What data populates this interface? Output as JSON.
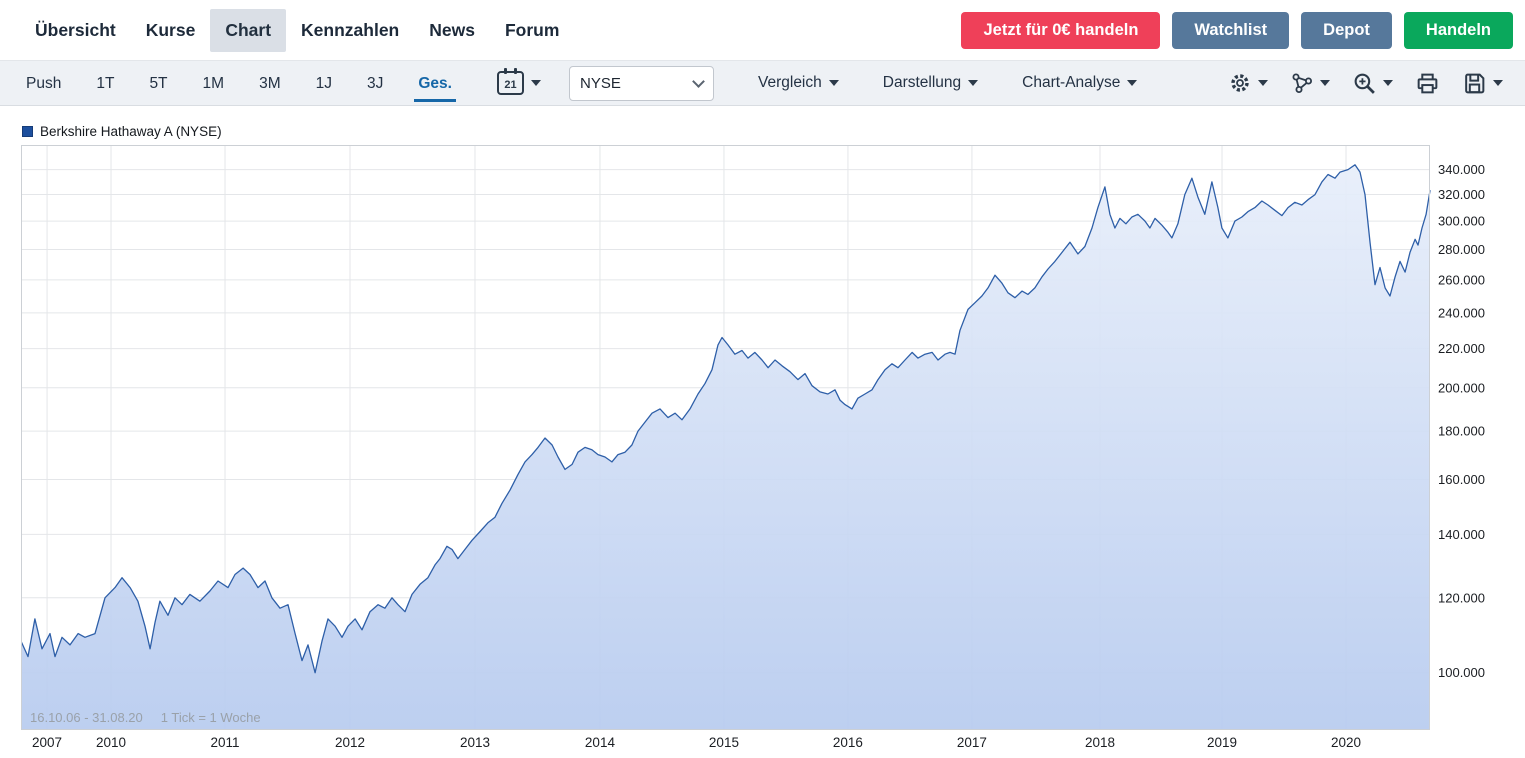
{
  "nav": {
    "tabs": [
      "Übersicht",
      "Kurse",
      "Chart",
      "Kennzahlen",
      "News",
      "Forum"
    ],
    "buttons": {
      "promo": "Jetzt für 0€ handeln",
      "watchlist": "Watchlist",
      "depot": "Depot",
      "trade": "Handeln"
    }
  },
  "toolbar": {
    "ranges": [
      "Push",
      "1T",
      "5T",
      "1M",
      "3M",
      "1J",
      "3J",
      "Ges."
    ],
    "active_range": "Ges.",
    "calendar_day": "21",
    "exchange_value": "NYSE",
    "menus": [
      "Vergleich",
      "Darstellung",
      "Chart-Analyse"
    ],
    "icons": [
      "calendar-icon",
      "settings-icon",
      "indicators-icon",
      "zoom-in-icon",
      "print-icon",
      "save-icon"
    ]
  },
  "colors": {
    "promo_button": "#ef4059",
    "watchlist_depot_button": "#56789b",
    "trade_button": "#0aa85c",
    "active_range": "#1667a8",
    "series_line": "#2e5fa8",
    "gridline": "#e4e6e9"
  },
  "chart_data": {
    "type": "area",
    "title": "Berkshire Hathaway A (NYSE)",
    "legend": {
      "label": "Berkshire Hathaway A (NYSE)",
      "color": "#1d4f9e"
    },
    "footer": {
      "period": "16.10.06 - 31.08.20",
      "tick_info": "1 Tick = 1 Woche"
    },
    "grid": true,
    "legend_position": "top-left",
    "x_axis": {
      "ticks": [
        {
          "label": "2007",
          "f": 0.0185
        },
        {
          "label": "2010",
          "f": 0.0639
        },
        {
          "label": "2011",
          "f": 0.1448
        },
        {
          "label": "2012",
          "f": 0.2335
        },
        {
          "label": "2013",
          "f": 0.3222
        },
        {
          "label": "2014",
          "f": 0.4109
        },
        {
          "label": "2015",
          "f": 0.4989
        },
        {
          "label": "2016",
          "f": 0.5869
        },
        {
          "label": "2017",
          "f": 0.6749
        },
        {
          "label": "2018",
          "f": 0.7658
        },
        {
          "label": "2019",
          "f": 0.8524
        },
        {
          "label": "2020",
          "f": 0.9404
        }
      ]
    },
    "y_axis": {
      "scale": "log",
      "min": 87,
      "max": 361,
      "unit": "USD, values in thousands",
      "ticks": [
        {
          "value": 100,
          "label": "100.000"
        },
        {
          "value": 120,
          "label": "120.000"
        },
        {
          "value": 140,
          "label": "140.000"
        },
        {
          "value": 160,
          "label": "160.000"
        },
        {
          "value": 180,
          "label": "180.000"
        },
        {
          "value": 200,
          "label": "200.000"
        },
        {
          "value": 220,
          "label": "220.000"
        },
        {
          "value": 240,
          "label": "240.000"
        },
        {
          "value": 260,
          "label": "260.000"
        },
        {
          "value": 280,
          "label": "280.000"
        },
        {
          "value": 300,
          "label": "300.000"
        },
        {
          "value": 320,
          "label": "320.000"
        },
        {
          "value": 340,
          "label": "340.000"
        }
      ]
    },
    "series": [
      {
        "name": "Berkshire Hathaway A (NYSE)",
        "color": "#2e5fa8",
        "fill_top": "#e7eefa",
        "fill_bottom": "#b7cbef",
        "points": [
          [
            0,
            108
          ],
          [
            0.005,
            104
          ],
          [
            0.0099,
            114
          ],
          [
            0.0149,
            106
          ],
          [
            0.0206,
            110
          ],
          [
            0.0241,
            104
          ],
          [
            0.0291,
            109
          ],
          [
            0.0348,
            107
          ],
          [
            0.0405,
            110
          ],
          [
            0.0454,
            109
          ],
          [
            0.0525,
            110
          ],
          [
            0.0596,
            120
          ],
          [
            0.0667,
            123
          ],
          [
            0.0717,
            126
          ],
          [
            0.0774,
            123
          ],
          [
            0.083,
            119
          ],
          [
            0.088,
            112
          ],
          [
            0.0916,
            106
          ],
          [
            0.0951,
            113
          ],
          [
            0.0986,
            119
          ],
          [
            0.1043,
            115
          ],
          [
            0.1093,
            120
          ],
          [
            0.1143,
            118
          ],
          [
            0.1199,
            121
          ],
          [
            0.127,
            119
          ],
          [
            0.1341,
            122
          ],
          [
            0.1398,
            125
          ],
          [
            0.1469,
            123
          ],
          [
            0.1519,
            127
          ],
          [
            0.1576,
            129
          ],
          [
            0.1625,
            127
          ],
          [
            0.1682,
            123
          ],
          [
            0.1732,
            125
          ],
          [
            0.1781,
            120
          ],
          [
            0.1838,
            117
          ],
          [
            0.1895,
            118
          ],
          [
            0.1945,
            110
          ],
          [
            0.1994,
            103
          ],
          [
            0.2037,
            107
          ],
          [
            0.2087,
            100
          ],
          [
            0.2136,
            108
          ],
          [
            0.2179,
            114
          ],
          [
            0.2229,
            112
          ],
          [
            0.2278,
            109
          ],
          [
            0.2321,
            112
          ],
          [
            0.2371,
            114
          ],
          [
            0.242,
            111
          ],
          [
            0.2477,
            116
          ],
          [
            0.2534,
            118
          ],
          [
            0.2583,
            117
          ],
          [
            0.2633,
            120
          ],
          [
            0.2676,
            118
          ],
          [
            0.2725,
            116
          ],
          [
            0.2775,
            121
          ],
          [
            0.2832,
            124
          ],
          [
            0.2888,
            126
          ],
          [
            0.2938,
            130
          ],
          [
            0.2974,
            132
          ],
          [
            0.3023,
            136
          ],
          [
            0.3059,
            135
          ],
          [
            0.3101,
            132
          ],
          [
            0.3151,
            135
          ],
          [
            0.3201,
            138
          ],
          [
            0.3258,
            141
          ],
          [
            0.3314,
            144
          ],
          [
            0.3364,
            146
          ],
          [
            0.3414,
            151
          ],
          [
            0.3471,
            156
          ],
          [
            0.3527,
            162
          ],
          [
            0.3577,
            167
          ],
          [
            0.3627,
            170
          ],
          [
            0.3669,
            173
          ],
          [
            0.3719,
            177
          ],
          [
            0.3769,
            174
          ],
          [
            0.3811,
            169
          ],
          [
            0.3861,
            164
          ],
          [
            0.3911,
            166
          ],
          [
            0.3953,
            171
          ],
          [
            0.4003,
            173
          ],
          [
            0.4052,
            172
          ],
          [
            0.4095,
            170
          ],
          [
            0.4145,
            169
          ],
          [
            0.4194,
            167
          ],
          [
            0.4237,
            170
          ],
          [
            0.4287,
            171
          ],
          [
            0.4336,
            174
          ],
          [
            0.4379,
            180
          ],
          [
            0.4429,
            184
          ],
          [
            0.4478,
            188
          ],
          [
            0.4535,
            190
          ],
          [
            0.4592,
            186
          ],
          [
            0.4642,
            188
          ],
          [
            0.4691,
            185
          ],
          [
            0.4748,
            190
          ],
          [
            0.4805,
            197
          ],
          [
            0.4854,
            202
          ],
          [
            0.4904,
            209
          ],
          [
            0.4947,
            222
          ],
          [
            0.4975,
            226
          ],
          [
            0.5018,
            222
          ],
          [
            0.5067,
            217
          ],
          [
            0.5117,
            219
          ],
          [
            0.516,
            215
          ],
          [
            0.5209,
            218
          ],
          [
            0.5259,
            214
          ],
          [
            0.5302,
            210
          ],
          [
            0.5351,
            214
          ],
          [
            0.5401,
            211
          ],
          [
            0.5458,
            208
          ],
          [
            0.5514,
            204
          ],
          [
            0.5564,
            207
          ],
          [
            0.5614,
            201
          ],
          [
            0.5671,
            198
          ],
          [
            0.5727,
            197
          ],
          [
            0.5777,
            199
          ],
          [
            0.5813,
            194
          ],
          [
            0.5848,
            192
          ],
          [
            0.5898,
            190
          ],
          [
            0.594,
            195
          ],
          [
            0.599,
            197
          ],
          [
            0.604,
            199
          ],
          [
            0.6082,
            204
          ],
          [
            0.6132,
            209
          ],
          [
            0.6182,
            212
          ],
          [
            0.6224,
            210
          ],
          [
            0.6274,
            214
          ],
          [
            0.6324,
            218
          ],
          [
            0.6366,
            215
          ],
          [
            0.6416,
            217
          ],
          [
            0.6466,
            218
          ],
          [
            0.6508,
            214
          ],
          [
            0.6558,
            217
          ],
          [
            0.6593,
            218
          ],
          [
            0.6629,
            217
          ],
          [
            0.6664,
            230
          ],
          [
            0.6721,
            242
          ],
          [
            0.6771,
            246
          ],
          [
            0.682,
            250
          ],
          [
            0.6863,
            255
          ],
          [
            0.6913,
            263
          ],
          [
            0.6962,
            258
          ],
          [
            0.7005,
            252
          ],
          [
            0.7055,
            249
          ],
          [
            0.7104,
            253
          ],
          [
            0.7147,
            251
          ],
          [
            0.7196,
            255
          ],
          [
            0.7246,
            262
          ],
          [
            0.7289,
            267
          ],
          [
            0.7338,
            272
          ],
          [
            0.7388,
            278
          ],
          [
            0.7445,
            285
          ],
          [
            0.7501,
            277
          ],
          [
            0.7551,
            282
          ],
          [
            0.7601,
            295
          ],
          [
            0.7643,
            310
          ],
          [
            0.7693,
            326
          ],
          [
            0.7728,
            305
          ],
          [
            0.7764,
            295
          ],
          [
            0.7799,
            302
          ],
          [
            0.7842,
            298
          ],
          [
            0.7884,
            303
          ],
          [
            0.7927,
            305
          ],
          [
            0.7977,
            300
          ],
          [
            0.8012,
            295
          ],
          [
            0.8048,
            302
          ],
          [
            0.8097,
            297
          ],
          [
            0.814,
            292
          ],
          [
            0.8168,
            288
          ],
          [
            0.8211,
            298
          ],
          [
            0.826,
            320
          ],
          [
            0.831,
            333
          ],
          [
            0.8353,
            318
          ],
          [
            0.8402,
            305
          ],
          [
            0.8452,
            330
          ],
          [
            0.8495,
            310
          ],
          [
            0.8523,
            295
          ],
          [
            0.8566,
            288
          ],
          [
            0.8615,
            300
          ],
          [
            0.8665,
            303
          ],
          [
            0.8708,
            307
          ],
          [
            0.8757,
            310
          ],
          [
            0.8807,
            315
          ],
          [
            0.885,
            312
          ],
          [
            0.8899,
            308
          ],
          [
            0.8949,
            304
          ],
          [
            0.8992,
            310
          ],
          [
            0.9041,
            314
          ],
          [
            0.9091,
            312
          ],
          [
            0.9134,
            316
          ],
          [
            0.9184,
            320
          ],
          [
            0.9233,
            330
          ],
          [
            0.9276,
            336
          ],
          [
            0.9326,
            333
          ],
          [
            0.9361,
            338
          ],
          [
            0.9418,
            340
          ],
          [
            0.9468,
            344
          ],
          [
            0.9503,
            338
          ],
          [
            0.9539,
            320
          ],
          [
            0.9574,
            285
          ],
          [
            0.961,
            257
          ],
          [
            0.9645,
            268
          ],
          [
            0.9681,
            255
          ],
          [
            0.9716,
            250
          ],
          [
            0.9752,
            262
          ],
          [
            0.9787,
            272
          ],
          [
            0.9823,
            265
          ],
          [
            0.9858,
            278
          ],
          [
            0.9894,
            287
          ],
          [
            0.9915,
            283
          ],
          [
            0.9943,
            295
          ],
          [
            0.9972,
            305
          ],
          [
            1,
            323
          ]
        ]
      }
    ]
  }
}
